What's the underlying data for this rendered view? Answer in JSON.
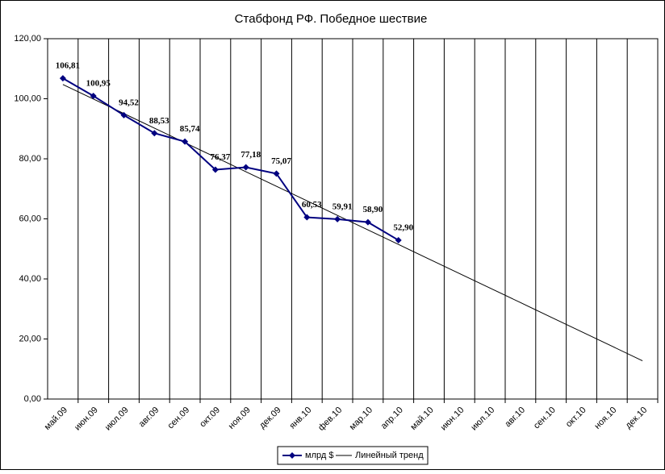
{
  "chart_data": {
    "type": "line",
    "title": "Стабфонд РФ. Победное шествие",
    "categories": [
      "май.09",
      "июн.09",
      "июл.09",
      "авг.09",
      "сен.09",
      "окт.09",
      "ноя.09",
      "дек.09",
      "янв.10",
      "фев.10",
      "мар.10",
      "апр.10",
      "май.10",
      "июн.10",
      "июл.10",
      "авг.10",
      "сен.10",
      "окт.10",
      "ноя.10",
      "дек.10"
    ],
    "series": [
      {
        "name": "млрд $",
        "color": "#000080",
        "marker": "diamond",
        "values": [
          106.81,
          100.95,
          94.52,
          88.53,
          85.74,
          76.37,
          77.18,
          75.07,
          60.53,
          59.91,
          58.9,
          52.9,
          null,
          null,
          null,
          null,
          null,
          null,
          null,
          null
        ],
        "value_labels": [
          "106,81",
          "100,95",
          "94,52",
          "88,53",
          "85,74",
          "76,37",
          "77,18",
          "75,07",
          "60,53",
          "59,91",
          "58,90",
          "52,90",
          null,
          null,
          null,
          null,
          null,
          null,
          null,
          null
        ]
      },
      {
        "name": "Линейный тренд",
        "color": "#000000",
        "values": [
          104.76,
          99.92,
          95.07,
          90.23,
          85.39,
          80.55,
          75.7,
          70.86,
          66.02,
          61.17,
          56.33,
          51.49,
          46.64,
          41.8,
          36.96,
          32.12,
          27.27,
          22.43,
          17.59,
          12.74
        ]
      }
    ],
    "ylim": [
      0,
      120
    ],
    "yticks": [
      {
        "value": 0,
        "label": "0,00"
      },
      {
        "value": 20,
        "label": "20,00"
      },
      {
        "value": 40,
        "label": "40,00"
      },
      {
        "value": 60,
        "label": "60,00"
      },
      {
        "value": 80,
        "label": "80,00"
      },
      {
        "value": 100,
        "label": "100,00"
      },
      {
        "value": 120,
        "label": "120,00"
      }
    ],
    "vertical_grid": true,
    "legend": "bottom"
  }
}
